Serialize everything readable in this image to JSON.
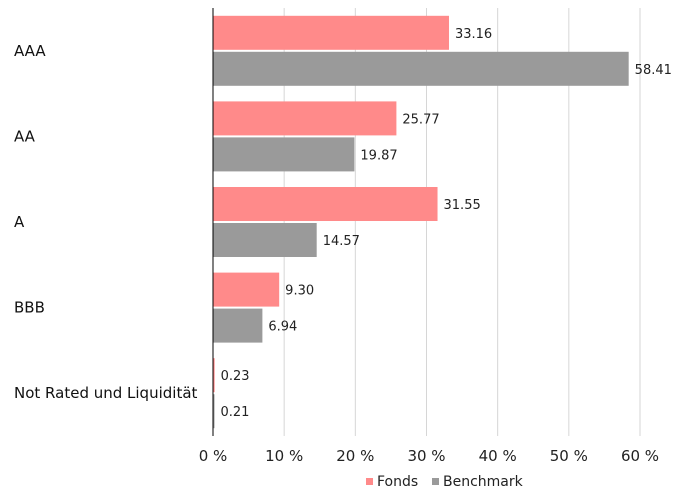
{
  "chart_data": {
    "type": "bar",
    "orientation": "horizontal",
    "categories": [
      "AAA",
      "AA",
      "A",
      "BBB",
      "Not Rated und Liquidität"
    ],
    "series": [
      {
        "name": "Fonds",
        "values": [
          33.16,
          25.77,
          31.55,
          9.3,
          0.23
        ],
        "value_labels": [
          "33.16",
          "25.77",
          "31.55",
          "9.30",
          "0.23"
        ],
        "color": "#ff8a8a"
      },
      {
        "name": "Benchmark",
        "values": [
          58.41,
          19.87,
          14.57,
          6.94,
          0.21
        ],
        "value_labels": [
          "58.41",
          "19.87",
          "14.57",
          "6.94",
          "0.21"
        ],
        "color": "#9a9a9a"
      }
    ],
    "xlim": [
      0,
      60
    ],
    "xticks": [
      0,
      10,
      20,
      30,
      40,
      50,
      60
    ],
    "xtick_labels": [
      "0 %",
      "10 %",
      "20 %",
      "30 %",
      "40 %",
      "50 %",
      "60 %"
    ],
    "grid": "vertical",
    "legend": "bottom-right",
    "title": "",
    "xlabel": "",
    "ylabel": ""
  }
}
